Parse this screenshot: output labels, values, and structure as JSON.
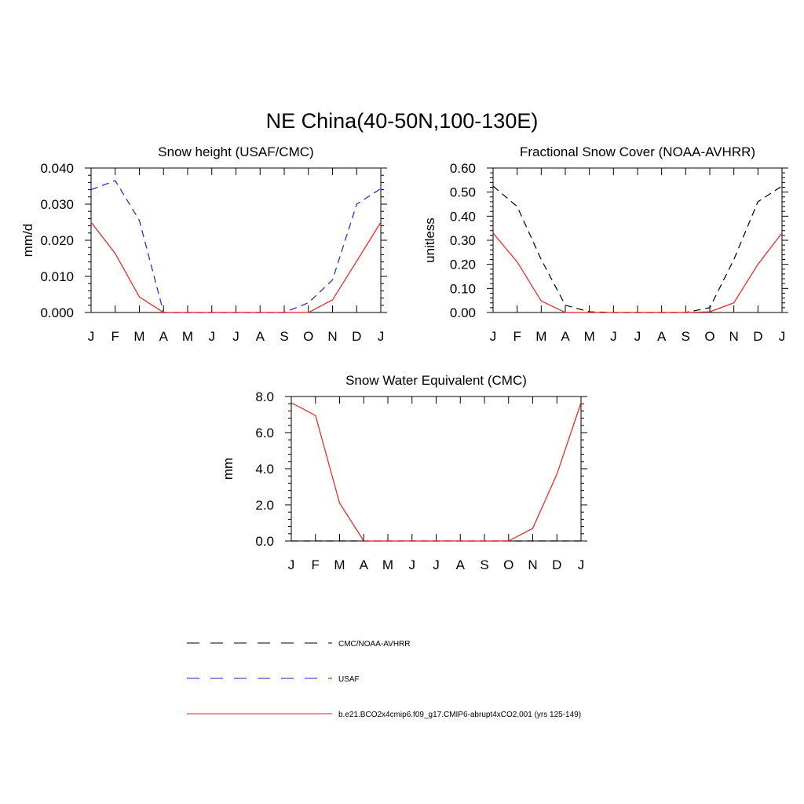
{
  "figure": {
    "title": "NE China(40-50N,100-130E)"
  },
  "colors": {
    "cmc_noaa": "#000000",
    "usaf": "#1f1fd6",
    "model": "#e81e1e"
  },
  "legend": [
    {
      "label": "CMC/NOAA-AVHRR",
      "color": "#000000",
      "style": "dashed"
    },
    {
      "label": "USAF",
      "color": "#1f1fd6",
      "style": "dashed"
    },
    {
      "label": "b.e21.BCO2x4cmip6.f09_g17.CMIP6-abrupt4xCO2.001 (yrs 125-149)",
      "color": "#e81e1e",
      "style": "solid"
    }
  ],
  "chart_data": [
    {
      "type": "line",
      "title": "Snow height (USAF/CMC)",
      "xlabel": "",
      "ylabel": "mm/d",
      "categories": [
        "J",
        "F",
        "M",
        "A",
        "M",
        "J",
        "J",
        "A",
        "S",
        "O",
        "N",
        "D",
        "J"
      ],
      "ylim": [
        0,
        0.04
      ],
      "yticks": [
        "0.000",
        "0.010",
        "0.020",
        "0.030",
        "0.040"
      ],
      "series": [
        {
          "name": "USAF",
          "style": "dashed",
          "color": "#1f1fd6",
          "values": [
            0.034,
            0.0365,
            0.0255,
            0.0,
            0.0,
            0.0,
            0.0,
            0.0,
            0.0,
            0.0027,
            0.009,
            0.03,
            0.0343
          ]
        },
        {
          "name": "b.e21.BCO2x4cmip6.f09_g17.CMIP6-abrupt4xCO2.001 (yrs 125-149)",
          "style": "solid",
          "color": "#e81e1e",
          "values": [
            0.025,
            0.0163,
            0.0043,
            0.0,
            0.0,
            0.0,
            0.0,
            0.0,
            0.0,
            0.0,
            0.0035,
            0.0142,
            0.025
          ]
        }
      ]
    },
    {
      "type": "line",
      "title": "Fractional Snow Cover (NOAA-AVHRR)",
      "xlabel": "",
      "ylabel": "unitless",
      "categories": [
        "J",
        "F",
        "M",
        "A",
        "M",
        "J",
        "J",
        "A",
        "S",
        "O",
        "N",
        "D",
        "J"
      ],
      "ylim": [
        0,
        0.6
      ],
      "yticks": [
        "0.00",
        "0.10",
        "0.20",
        "0.30",
        "0.40",
        "0.50",
        "0.60"
      ],
      "series": [
        {
          "name": "CMC/NOAA-AVHRR",
          "style": "dashed",
          "color": "#000000",
          "values": [
            0.525,
            0.44,
            0.22,
            0.03,
            0.003,
            0.0,
            0.0,
            0.0,
            0.0,
            0.02,
            0.22,
            0.46,
            0.525
          ]
        },
        {
          "name": "b.e21.BCO2x4cmip6.f09_g17.CMIP6-abrupt4xCO2.001 (yrs 125-149)",
          "style": "solid",
          "color": "#e81e1e",
          "values": [
            0.33,
            0.21,
            0.048,
            0.0,
            0.0,
            0.0,
            0.0,
            0.0,
            0.0,
            0.003,
            0.04,
            0.2,
            0.33
          ]
        }
      ]
    },
    {
      "type": "line",
      "title": "Snow Water Equivalent (CMC)",
      "xlabel": "",
      "ylabel": "mm",
      "categories": [
        "J",
        "F",
        "M",
        "A",
        "M",
        "J",
        "J",
        "A",
        "S",
        "O",
        "N",
        "D",
        "J"
      ],
      "ylim": [
        0,
        8
      ],
      "yticks": [
        "0.0",
        "2.0",
        "4.0",
        "6.0",
        "8.0"
      ],
      "series": [
        {
          "name": "CMC/NOAA-AVHRR",
          "style": "dashed",
          "color": "#000000",
          "values": [
            0,
            0,
            0,
            0,
            0,
            0,
            0,
            0,
            0,
            0,
            0,
            0,
            0
          ]
        },
        {
          "name": "b.e21.BCO2x4cmip6.f09_g17.CMIP6-abrupt4xCO2.001 (yrs 125-149)",
          "style": "solid",
          "color": "#e81e1e",
          "values": [
            7.65,
            6.95,
            2.1,
            0.0,
            0.0,
            0.0,
            0.0,
            0.0,
            0.0,
            0.0,
            0.7,
            3.7,
            7.65
          ]
        }
      ]
    }
  ]
}
